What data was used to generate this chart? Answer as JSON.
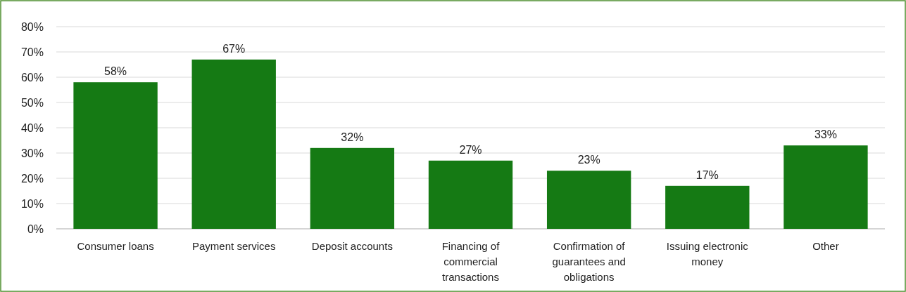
{
  "chart_data": {
    "type": "bar",
    "categories": [
      "Consumer loans",
      "Payment services",
      "Deposit accounts",
      "Financing of commercial transactions",
      "Confirmation of guarantees and obligations",
      "Issuing electronic money",
      "Other"
    ],
    "values": [
      58,
      67,
      32,
      27,
      23,
      17,
      33
    ],
    "value_labels": [
      "58%",
      "67%",
      "32%",
      "27%",
      "23%",
      "17%",
      "33%"
    ],
    "color": "#157a14",
    "ylim": [
      0,
      80
    ],
    "yticks": [
      {
        "value": 0,
        "label": "0%"
      },
      {
        "value": 10,
        "label": "10%"
      },
      {
        "value": 20,
        "label": "20%"
      },
      {
        "value": 30,
        "label": "30%"
      },
      {
        "value": 40,
        "label": "40%"
      },
      {
        "value": 50,
        "label": "50%"
      },
      {
        "value": 60,
        "label": "60%"
      },
      {
        "value": 70,
        "label": "70%"
      },
      {
        "value": 80,
        "label": "80%"
      }
    ],
    "grid": "y"
  }
}
